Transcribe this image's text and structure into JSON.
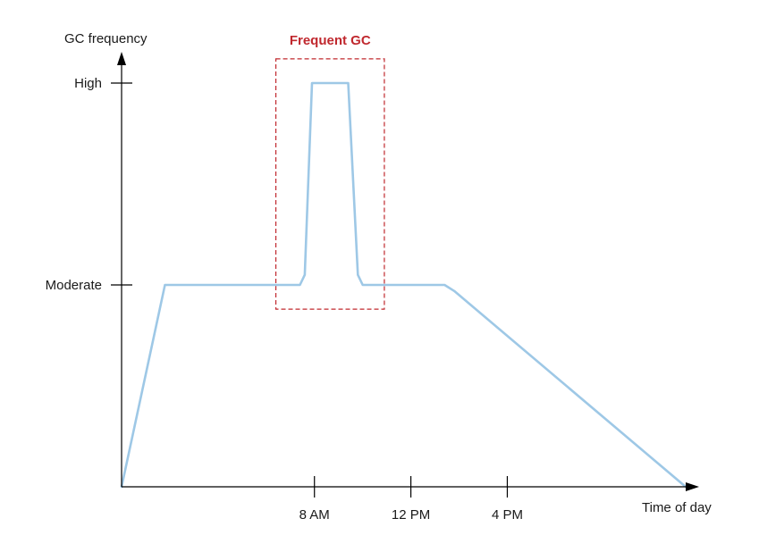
{
  "chart_data": {
    "type": "line",
    "title": "",
    "xlabel": "Time of day",
    "ylabel": "GC frequency",
    "x_ticks": [
      "8 AM",
      "12 PM",
      "4 PM"
    ],
    "y_ticks": [
      "Moderate",
      "High"
    ],
    "y_levels": {
      "Moderate": 1,
      "High": 2
    },
    "xlim_hours": [
      0,
      23.4
    ],
    "x_tick_hours": [
      8,
      12,
      16
    ],
    "ylim": [
      0,
      2
    ],
    "grid": false,
    "series": [
      {
        "color": "#9ec8e6",
        "points": [
          {
            "x": 0,
            "y": 0
          },
          {
            "x": 1.8,
            "y": 1
          },
          {
            "x": 7.4,
            "y": 1
          },
          {
            "x": 7.6,
            "y": 1.05
          },
          {
            "x": 7.9,
            "y": 2
          },
          {
            "x": 9.4,
            "y": 2
          },
          {
            "x": 9.8,
            "y": 1.05
          },
          {
            "x": 10.0,
            "y": 1
          },
          {
            "x": 13.4,
            "y": 1
          },
          {
            "x": 13.8,
            "y": 0.97
          },
          {
            "x": 23.4,
            "y": 0
          }
        ]
      }
    ],
    "annotations": [
      {
        "text": "Frequent GC",
        "color": "#c0282e",
        "x_range": [
          6.4,
          10.9
        ],
        "y_range": [
          0.88,
          2.12
        ]
      }
    ]
  }
}
